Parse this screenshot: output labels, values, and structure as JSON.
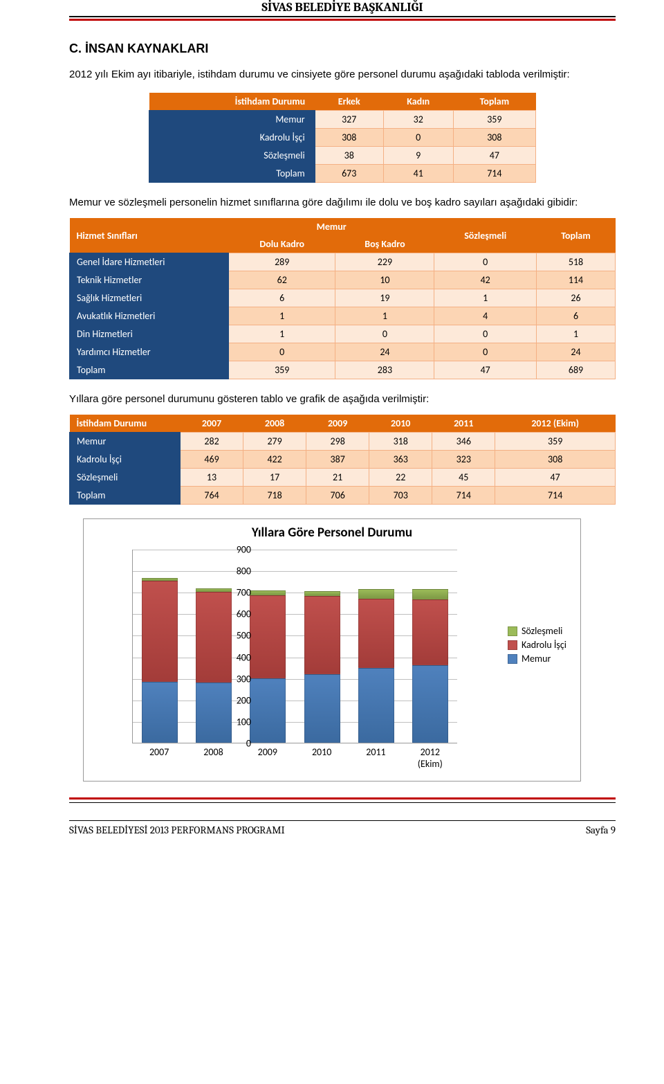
{
  "header": {
    "title": "SİVAS BELEDİYE BAŞKANLIĞI"
  },
  "section": {
    "title": "C. İNSAN KAYNAKLARI",
    "intro": "2012 yılı Ekim ayı itibariyle, istihdam durumu ve cinsiyete göre personel durumu aşağıdaki tabloda verilmiştir:",
    "desc2": "Memur ve sözleşmeli personelin hizmet sınıflarına göre dağılımı ile dolu ve boş kadro sayıları aşağıdaki gibidir:",
    "desc3": "Yıllara göre personel durumunu gösteren tablo ve grafik de aşağıda verilmiştir:"
  },
  "table1": {
    "headers": [
      "İstihdam Durumu",
      "Erkek",
      "Kadın",
      "Toplam"
    ],
    "rows": [
      {
        "label": "Memur",
        "vals": [
          "327",
          "32",
          "359"
        ]
      },
      {
        "label": "Kadrolu İşçi",
        "vals": [
          "308",
          "0",
          "308"
        ]
      },
      {
        "label": "Sözleşmeli",
        "vals": [
          "38",
          "9",
          "47"
        ]
      },
      {
        "label": "Toplam",
        "vals": [
          "673",
          "41",
          "714"
        ]
      }
    ]
  },
  "table2": {
    "h_rowspan": "Hizmet Sınıfları",
    "h_memur": "Memur",
    "h_soz": "Sözleşmeli",
    "h_top": "Toplam",
    "h_dolu": "Dolu Kadro",
    "h_bos": "Boş Kadro",
    "rows": [
      {
        "label": "Genel İdare Hizmetleri",
        "vals": [
          "289",
          "229",
          "0",
          "518"
        ]
      },
      {
        "label": "Teknik Hizmetler",
        "vals": [
          "62",
          "10",
          "42",
          "114"
        ]
      },
      {
        "label": "Sağlık Hizmetleri",
        "vals": [
          "6",
          "19",
          "1",
          "26"
        ]
      },
      {
        "label": "Avukatlık Hizmetleri",
        "vals": [
          "1",
          "1",
          "4",
          "6"
        ]
      },
      {
        "label": "Din Hizmetleri",
        "vals": [
          "1",
          "0",
          "0",
          "1"
        ]
      },
      {
        "label": "Yardımcı Hizmetler",
        "vals": [
          "0",
          "24",
          "0",
          "24"
        ]
      },
      {
        "label": "Toplam",
        "vals": [
          "359",
          "283",
          "47",
          "689"
        ]
      }
    ]
  },
  "table3": {
    "headers": [
      "İstihdam Durumu",
      "2007",
      "2008",
      "2009",
      "2010",
      "2011",
      "2012 (Ekim)"
    ],
    "rows": [
      {
        "label": "Memur",
        "vals": [
          "282",
          "279",
          "298",
          "318",
          "346",
          "359"
        ]
      },
      {
        "label": "Kadrolu İşçi",
        "vals": [
          "469",
          "422",
          "387",
          "363",
          "323",
          "308"
        ]
      },
      {
        "label": "Sözleşmeli",
        "vals": [
          "13",
          "17",
          "21",
          "22",
          "45",
          "47"
        ]
      },
      {
        "label": "Toplam",
        "vals": [
          "764",
          "718",
          "706",
          "703",
          "714",
          "714"
        ]
      }
    ]
  },
  "chart": {
    "type": "stacked-bar",
    "title": "Yıllara Göre Personel Durumu",
    "categories": [
      "2007",
      "2008",
      "2009",
      "2010",
      "2011",
      "2012\n(Ekim)"
    ],
    "ylim": [
      0,
      900
    ],
    "ytick_step": 100,
    "yticks": [
      "0",
      "100",
      "200",
      "300",
      "400",
      "500",
      "600",
      "700",
      "800",
      "900"
    ],
    "series": [
      {
        "name": "Memur",
        "color": "#4f81bd",
        "gradient": "#3b6aa0",
        "values": [
          282,
          279,
          298,
          318,
          346,
          359
        ]
      },
      {
        "name": "Kadrolu İşçi",
        "color": "#c0504d",
        "gradient": "#a33c39",
        "values": [
          469,
          422,
          387,
          363,
          323,
          308
        ]
      },
      {
        "name": "Sözleşmeli",
        "color": "#9bbb59",
        "gradient": "#7e9a45",
        "values": [
          13,
          17,
          21,
          22,
          45,
          47
        ]
      }
    ],
    "legend_order": [
      "Sözleşmeli",
      "Kadrolu İşçi",
      "Memur"
    ],
    "background_color": "#ffffff",
    "grid_color": "#bfbfbf",
    "title_fontsize": 19,
    "label_fontsize": 14
  },
  "footer": {
    "left": "SİVAS BELEDİYESİ 2013 PERFORMANS PROGRAMI",
    "right": "Sayfa 9"
  }
}
